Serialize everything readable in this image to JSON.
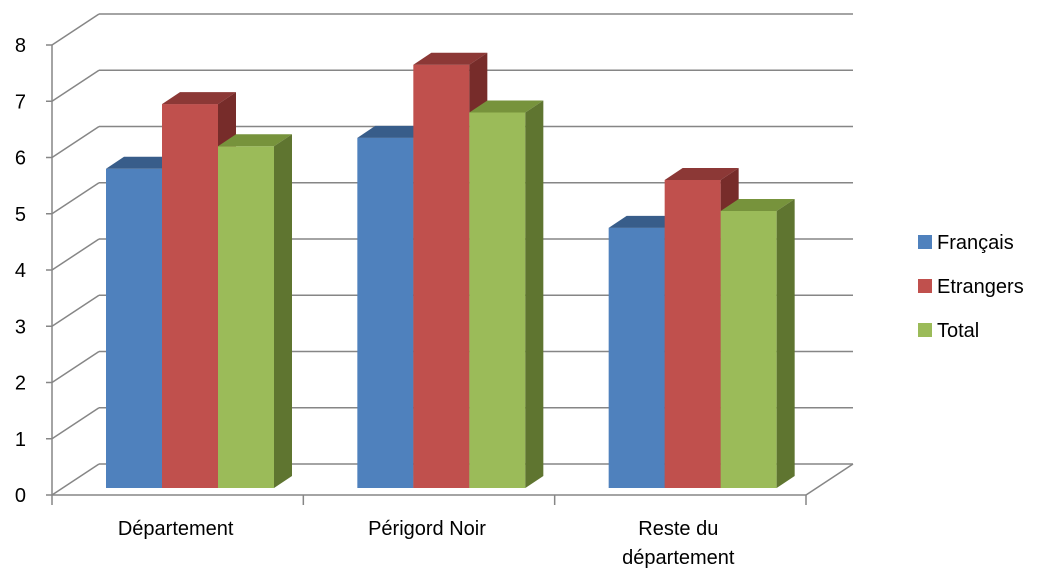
{
  "chart_data": {
    "type": "bar",
    "style": "3d-clustered-column",
    "categories": [
      [
        "Département"
      ],
      [
        "Périgord Noir"
      ],
      [
        "Reste du",
        "département"
      ]
    ],
    "series": [
      {
        "name": "Français",
        "values": [
          5.8,
          6.35,
          4.75
        ],
        "color": "#4F81BD",
        "top_color": "#385D8A",
        "side_color": "#2C4D75"
      },
      {
        "name": "Etrangers",
        "values": [
          6.95,
          7.65,
          5.6
        ],
        "color": "#C0504D",
        "top_color": "#8C3836",
        "side_color": "#772C2A"
      },
      {
        "name": "Total",
        "values": [
          6.2,
          6.8,
          5.05
        ],
        "color": "#9BBB59",
        "top_color": "#77933C",
        "side_color": "#5F7530"
      }
    ],
    "y_ticks": [
      "0",
      "1",
      "2",
      "3",
      "4",
      "5",
      "6",
      "7",
      "8"
    ],
    "ylim": [
      0,
      8
    ],
    "grid": true,
    "legend_position": "right",
    "title": "",
    "xlabel": "",
    "ylabel": ""
  }
}
